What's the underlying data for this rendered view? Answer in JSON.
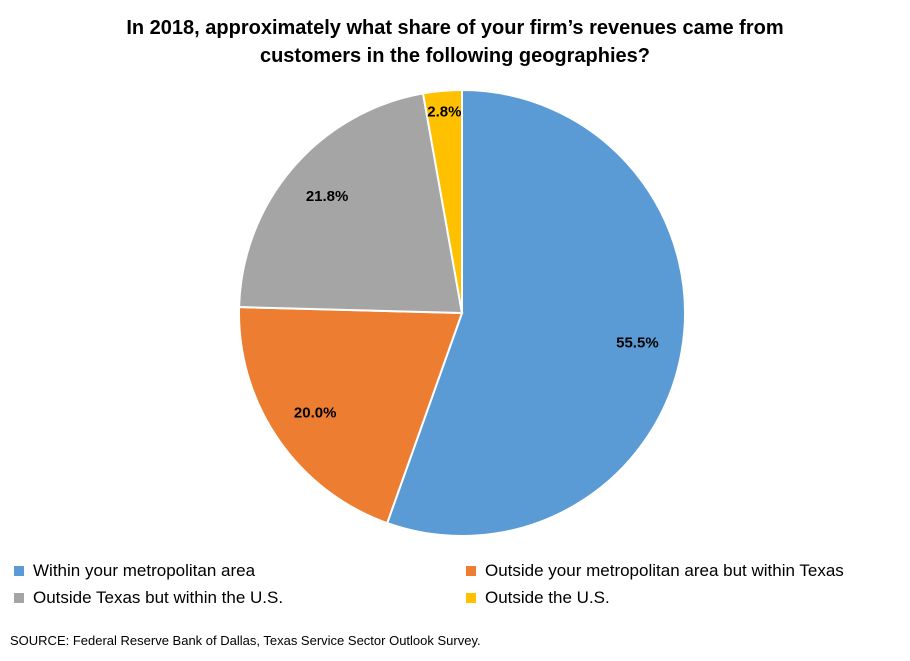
{
  "chart_data": {
    "type": "pie",
    "title_lines": [
      "In 2018, approximately what share of your firm’s revenues came from",
      "customers in the following geographies?"
    ],
    "slices": [
      {
        "name": "Within your metropolitan area",
        "value": 55.5,
        "label": "55.5%",
        "color": "#5b9bd5"
      },
      {
        "name": "Outside your metropolitan area but within Texas",
        "value": 20.0,
        "label": "20.0%",
        "color": "#ed7d31"
      },
      {
        "name": "Outside Texas but within the U.S.",
        "value": 21.8,
        "label": "21.8%",
        "color": "#a5a5a5"
      },
      {
        "name": "Outside the U.S.",
        "value": 2.8,
        "label": "2.8%",
        "color": "#ffc000"
      }
    ],
    "start_angle": "12 o'clock",
    "direction": "clockwise",
    "legend_position": "bottom",
    "source": "SOURCE: Federal Reserve Bank of Dallas, Texas Service Sector Outlook Survey."
  }
}
